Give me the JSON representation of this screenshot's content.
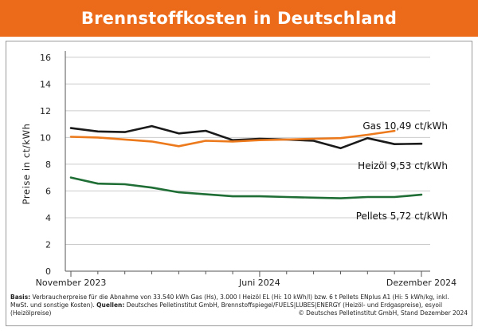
{
  "header": {
    "title": "Brennstoffkosten in Deutschland"
  },
  "colors": {
    "header_bg": "#ec6b1a",
    "gas": "#ec7a1c",
    "heizoel": "#1a1a1a",
    "pellets": "#1f6e35",
    "grid": "#cccccc",
    "axis": "#555555"
  },
  "chart_data": {
    "type": "line",
    "title": "Brennstoffkosten in Deutschland",
    "ylabel": "Preise in ct/kWh",
    "xlabel": "",
    "ylim": [
      0,
      17
    ],
    "yticks": [
      0,
      2,
      4,
      6,
      8,
      10,
      12,
      14,
      16
    ],
    "grid": true,
    "x_count": 14,
    "xtick_labels": [
      {
        "label": "November 2023",
        "index": 0
      },
      {
        "label": "Juni 2024",
        "index": 7
      },
      {
        "label": "Dezember 2024",
        "index": 13
      }
    ],
    "series": [
      {
        "name": "Heizöl",
        "key": "heizoel",
        "label": "Heizöl  9,53 ct/kWh",
        "values": [
          10.7,
          10.45,
          10.4,
          10.85,
          10.3,
          10.5,
          9.8,
          9.9,
          9.85,
          9.75,
          9.2,
          9.95,
          9.5,
          9.53
        ]
      },
      {
        "name": "Gas",
        "key": "gas",
        "label": "Gas 10,49 ct/kWh",
        "values": [
          10.05,
          10.0,
          9.85,
          9.7,
          9.35,
          9.75,
          9.7,
          9.8,
          9.85,
          9.9,
          9.95,
          10.2,
          10.49,
          null
        ]
      },
      {
        "name": "Pellets",
        "key": "pellets",
        "label": "Pellets  5,72 ct/kWh",
        "values": [
          7.0,
          6.55,
          6.5,
          6.25,
          5.9,
          5.75,
          5.6,
          5.6,
          5.55,
          5.5,
          5.45,
          5.55,
          5.55,
          5.72
        ]
      }
    ]
  },
  "footer": {
    "basis_label": "Basis:",
    "basis_text": " Verbraucherpreise für die Abnahme von 33.540 kWh Gas (Hs), 3.000 l Heizöl EL (Hi: 10 kWh/l) bzw. 6 t Pellets ENplus A1 (Hi: 5 kWh/kg, inkl. MwSt. und sonstige Kosten).",
    "sources_label": "Quellen:",
    "sources_text": " Deutsches Pelletinstitut GmbH, Brennstoffspiegel/FUELS|LUBES|ENERGY (Heizöl- und Erdgaspreise), esyoil (Heizölpreise)",
    "copyright": "© Deutsches Pelletinstitut GmbH, Stand Dezember 2024"
  }
}
